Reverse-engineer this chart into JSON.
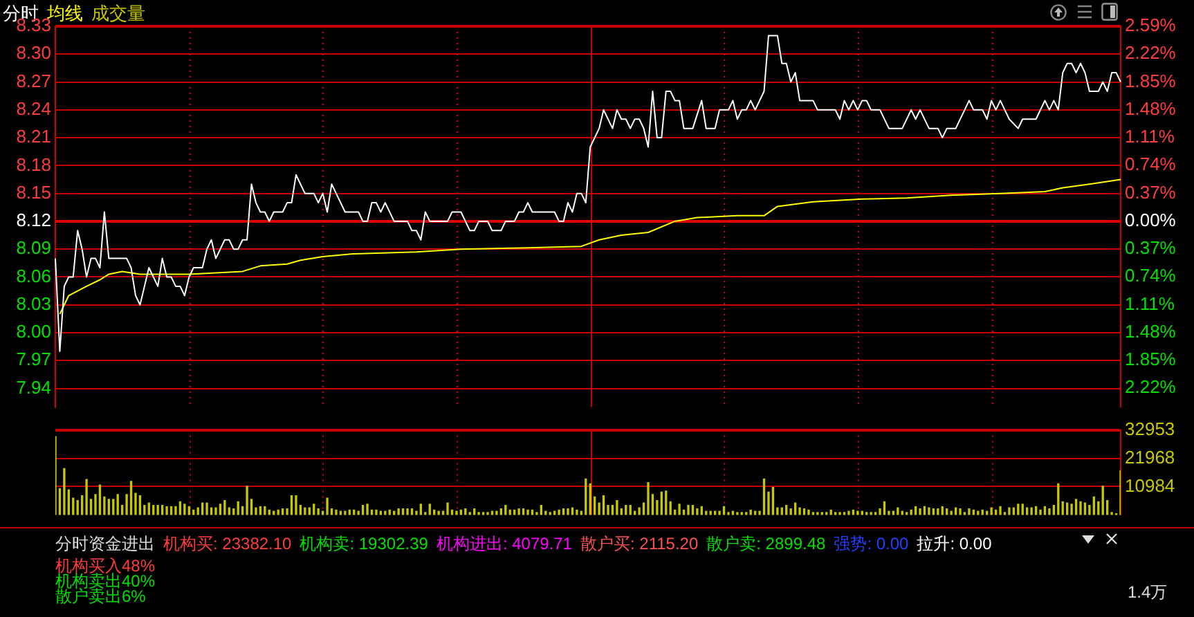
{
  "chart_data": [
    {
      "type": "line",
      "grid": true,
      "tick_labels": "y",
      "categories": [
        null,
        null,
        null,
        null,
        null,
        null,
        null,
        null,
        null,
        null,
        null,
        null,
        null,
        null,
        null,
        null,
        null,
        null,
        null,
        null,
        null,
        null,
        null,
        null,
        null,
        null,
        null,
        null,
        null,
        null,
        null,
        null,
        null,
        null,
        null,
        null,
        null,
        null,
        null,
        null,
        null,
        null,
        null,
        null,
        null,
        null,
        null,
        null,
        null,
        null,
        null,
        null,
        null,
        null,
        null,
        null,
        null,
        null,
        null,
        null,
        null,
        null,
        null,
        null,
        null,
        null,
        null,
        null,
        null,
        null,
        null,
        null,
        null,
        null,
        null,
        null,
        null,
        null,
        null,
        null,
        null,
        null,
        null,
        null,
        null,
        null,
        null,
        null,
        null,
        null,
        null,
        null,
        null,
        null,
        null,
        null,
        null,
        null,
        null,
        null,
        null,
        null,
        null,
        null,
        null,
        null,
        null,
        null,
        null,
        null,
        null,
        null,
        null,
        null,
        null,
        null,
        null,
        null,
        null,
        null,
        null,
        null,
        null,
        null,
        null,
        null,
        null,
        null,
        null,
        null,
        null,
        null,
        null,
        null,
        null,
        null,
        null,
        null,
        null,
        null,
        null,
        null,
        null,
        null,
        null,
        null,
        null,
        null,
        null,
        null,
        null,
        null,
        null,
        null,
        null,
        null,
        null,
        null,
        null,
        null,
        null,
        null,
        null,
        null,
        null,
        null,
        null,
        null,
        null,
        null,
        null,
        null,
        null,
        null,
        null,
        null,
        null,
        null,
        null,
        null,
        null,
        null,
        null,
        null,
        null,
        null,
        null,
        null,
        null,
        null,
        null,
        null,
        null,
        null,
        null,
        null,
        null,
        null,
        null,
        null,
        null,
        null,
        null,
        null,
        null,
        null,
        null,
        null,
        null,
        null,
        null,
        null,
        null,
        null,
        null,
        null,
        null,
        null,
        null,
        null,
        null,
        null,
        null,
        null,
        null,
        null,
        null,
        null,
        null,
        null,
        null,
        null,
        null,
        null,
        null,
        null,
        null,
        null,
        null,
        null
      ],
      "series": [
        {
          "name": "分时",
          "color": "#ffffff",
          "values": [
            8.08,
            7.98,
            8.05,
            8.06,
            8.06,
            8.11,
            8.09,
            8.06,
            8.08,
            8.08,
            8.07,
            8.13,
            8.08,
            8.08,
            8.08,
            8.08,
            8.08,
            8.07,
            8.04,
            8.03,
            8.05,
            8.07,
            8.06,
            8.05,
            8.08,
            8.06,
            8.06,
            8.05,
            8.05,
            8.04,
            8.06,
            8.07,
            8.07,
            8.07,
            8.09,
            8.1,
            8.08,
            null,
            8.1,
            8.1,
            8.09,
            8.09,
            8.1,
            8.1,
            8.16,
            8.14,
            8.13,
            8.13,
            8.12,
            8.13,
            8.13,
            8.13,
            8.14,
            8.14,
            8.17,
            8.16,
            8.15,
            8.15,
            8.15,
            8.14,
            8.15,
            8.13,
            8.16,
            8.15,
            null,
            8.13,
            8.13,
            8.13,
            8.13,
            8.12,
            8.12,
            8.14,
            8.14,
            8.13,
            8.14,
            null,
            8.12,
            8.12,
            8.12,
            8.12,
            8.11,
            8.11,
            8.1,
            8.13,
            8.12,
            8.12,
            8.12,
            8.12,
            8.12,
            8.13,
            8.13,
            8.13,
            null,
            8.11,
            8.11,
            8.12,
            8.12,
            8.12,
            8.11,
            8.11,
            8.11,
            8.12,
            8.12,
            8.12,
            8.13,
            8.13,
            8.14,
            8.13,
            8.13,
            8.13,
            8.13,
            8.13,
            8.13,
            8.12,
            8.12,
            8.14,
            8.13,
            8.15,
            8.15,
            8.14,
            8.2,
            8.21,
            8.22,
            8.24,
            null,
            8.22,
            8.24,
            8.23,
            8.23,
            8.22,
            8.23,
            8.23,
            8.22,
            8.2,
            8.26,
            8.21,
            8.21,
            8.26,
            8.26,
            8.25,
            8.25,
            8.22,
            8.22,
            8.22,
            null,
            8.25,
            8.22,
            8.22,
            8.22,
            8.24,
            8.24,
            8.24,
            8.25,
            8.23,
            8.24,
            8.24,
            8.25,
            8.24,
            null,
            8.26,
            8.32,
            8.32,
            8.32,
            8.29,
            8.29,
            8.27,
            8.28,
            8.25,
            8.25,
            8.25,
            8.25,
            8.24,
            8.24,
            8.24,
            8.24,
            8.24,
            8.23,
            8.25,
            8.24,
            8.25,
            8.24,
            8.25,
            8.25,
            8.24,
            8.24,
            8.24,
            null,
            8.22,
            8.22,
            8.22,
            8.22,
            null,
            8.24,
            8.23,
            8.24,
            null,
            8.22,
            8.22,
            8.22,
            8.21,
            8.22,
            8.22,
            8.22,
            null,
            8.24,
            8.25,
            8.24,
            8.24,
            8.24,
            8.23,
            8.25,
            8.24,
            8.25,
            8.24,
            8.23,
            null,
            8.22,
            8.23,
            8.23,
            8.23,
            8.23,
            null,
            8.25,
            8.24,
            8.25,
            8.24,
            8.28,
            8.29,
            8.29,
            8.28,
            8.29,
            8.28,
            8.26,
            8.26,
            8.26,
            8.27,
            8.26,
            8.28,
            8.28,
            8.27
          ]
        },
        {
          "name": "均线",
          "color": "#ffff00",
          "values": [
            null,
            8.02,
            8.03,
            8.04,
            null,
            8.045,
            null,
            8.05,
            null,
            null,
            8.057,
            null,
            8.063,
            null,
            null,
            8.066,
            null,
            null,
            null,
            8.063,
            null,
            null,
            null,
            null,
            null,
            null,
            null,
            null,
            null,
            null,
            8.063,
            null,
            null,
            null,
            null,
            null,
            null,
            null,
            null,
            null,
            null,
            null,
            8.066,
            null,
            null,
            null,
            8.072,
            null,
            null,
            null,
            null,
            null,
            8.074,
            null,
            null,
            8.078,
            null,
            null,
            null,
            null,
            8.082,
            null,
            null,
            null,
            null,
            null,
            null,
            8.085,
            null,
            null,
            null,
            null,
            null,
            null,
            null,
            null,
            null,
            null,
            null,
            null,
            null,
            8.087,
            null,
            null,
            null,
            null,
            null,
            null,
            null,
            null,
            null,
            8.09,
            null,
            null,
            null,
            null,
            null,
            null,
            null,
            null,
            null,
            null,
            8.091,
            null,
            null,
            null,
            null,
            null,
            null,
            null,
            null,
            null,
            null,
            null,
            null,
            null,
            null,
            null,
            8.093,
            null,
            null,
            null,
            8.1,
            null,
            null,
            null,
            null,
            8.105,
            null,
            null,
            null,
            null,
            null,
            8.108,
            null,
            null,
            null,
            null,
            null,
            8.12,
            null,
            null,
            null,
            null,
            8.124,
            null,
            null,
            null,
            null,
            null,
            null,
            null,
            null,
            8.126,
            null,
            null,
            null,
            null,
            null,
            8.126,
            null,
            null,
            8.136,
            null,
            null,
            null,
            null,
            null,
            null,
            null,
            8.141,
            null,
            null,
            null,
            null,
            null,
            null,
            null,
            null,
            null,
            null,
            8.144,
            null,
            null,
            null,
            null,
            null,
            null,
            null,
            null,
            null,
            8.145,
            null,
            null,
            null,
            null,
            null,
            null,
            null,
            null,
            null,
            8.148,
            null,
            null,
            null,
            null,
            null,
            null,
            null,
            null,
            null,
            null,
            8.15,
            null,
            null,
            null,
            null,
            null,
            null,
            null,
            null,
            null,
            8.152,
            null,
            null,
            null,
            8.156,
            null,
            null,
            null,
            null,
            null,
            8.16,
            null,
            null,
            null,
            null,
            null,
            null,
            8.165
          ]
        }
      ],
      "ylim": [
        7.92,
        8.33
      ],
      "yticks": [
        {
          "value": 8.33,
          "label": "8.33"
        },
        {
          "value": 8.3,
          "label": "8.30"
        },
        {
          "value": 8.27,
          "label": "8.27"
        },
        {
          "value": 8.24,
          "label": "8.24"
        },
        {
          "value": 8.21,
          "label": "8.21"
        },
        {
          "value": 8.18,
          "label": "8.18"
        },
        {
          "value": 8.15,
          "label": "8.15"
        },
        {
          "value": 8.12,
          "label": "8.12"
        },
        {
          "value": 8.09,
          "label": "8.09"
        },
        {
          "value": 8.06,
          "label": "8.06"
        },
        {
          "value": 8.03,
          "label": "8.03"
        },
        {
          "value": 8.0,
          "label": "8.00"
        },
        {
          "value": 7.97,
          "label": "7.97"
        },
        {
          "value": 7.94,
          "label": "7.94"
        }
      ],
      "y2lim": [
        -2.47,
        2.59
      ],
      "y2ticks": [
        {
          "value": 2.59,
          "label": "2.59%"
        },
        {
          "value": 2.22,
          "label": "2.22%"
        },
        {
          "value": 1.85,
          "label": "1.85%"
        },
        {
          "value": 1.48,
          "label": "1.48%"
        },
        {
          "value": 1.11,
          "label": "1.11%"
        },
        {
          "value": 0.74,
          "label": "0.74%"
        },
        {
          "value": 0.37,
          "label": "0.37%"
        },
        {
          "value": 0,
          "label": "0.00%"
        },
        {
          "value": -0.37,
          "label": "0.37%"
        },
        {
          "value": -0.74,
          "label": "0.74%"
        },
        {
          "value": -1.11,
          "label": "1.11%"
        },
        {
          "value": -1.48,
          "label": "1.48%"
        },
        {
          "value": -1.85,
          "label": "1.85%"
        },
        {
          "value": -2.22,
          "label": "2.22%"
        }
      ],
      "ref_lines": [
        {
          "axis": "y",
          "value": 8.12
        }
      ]
    },
    {
      "type": "bar",
      "grid": true,
      "tick_labels": "y",
      "categories": [
        null,
        null,
        null,
        null,
        null,
        null,
        null,
        null,
        null,
        null,
        null,
        null,
        null,
        null,
        null,
        null,
        null,
        null,
        null,
        null,
        null,
        null,
        null,
        null,
        null,
        null,
        null,
        null,
        null,
        null,
        null,
        null,
        null,
        null,
        null,
        null,
        null,
        null,
        null,
        null,
        null,
        null,
        null,
        null,
        null,
        null,
        null,
        null,
        null,
        null,
        null,
        null,
        null,
        null,
        null,
        null,
        null,
        null,
        null,
        null,
        null,
        null,
        null,
        null,
        null,
        null,
        null,
        null,
        null,
        null,
        null,
        null,
        null,
        null,
        null,
        null,
        null,
        null,
        null,
        null,
        null,
        null,
        null,
        null,
        null,
        null,
        null,
        null,
        null,
        null,
        null,
        null,
        null,
        null,
        null,
        null,
        null,
        null,
        null,
        null,
        null,
        null,
        null,
        null,
        null,
        null,
        null,
        null,
        null,
        null,
        null,
        null,
        null,
        null,
        null,
        null,
        null,
        null,
        null,
        null,
        null,
        null,
        null,
        null,
        null,
        null,
        null,
        null,
        null,
        null,
        null,
        null,
        null,
        null,
        null,
        null,
        null,
        null,
        null,
        null,
        null,
        null,
        null,
        null,
        null,
        null,
        null,
        null,
        null,
        null,
        null,
        null,
        null,
        null,
        null,
        null,
        null,
        null,
        null,
        null,
        null,
        null,
        null,
        null,
        null,
        null,
        null,
        null,
        null,
        null,
        null,
        null,
        null,
        null,
        null,
        null,
        null,
        null,
        null,
        null,
        null,
        null,
        null,
        null,
        null,
        null,
        null,
        null,
        null,
        null,
        null,
        null,
        null,
        null,
        null,
        null,
        null,
        null,
        null,
        null,
        null,
        null,
        null,
        null,
        null,
        null,
        null,
        null,
        null,
        null,
        null,
        null,
        null,
        null,
        null,
        null,
        null,
        null,
        null,
        null,
        null,
        null,
        null,
        null,
        null,
        null,
        null,
        null,
        null,
        null,
        null,
        null,
        null,
        null,
        null,
        null,
        null,
        null,
        null,
        null
      ],
      "series": [
        {
          "name": "成交量",
          "color": "#c8c800",
          "values": [
            30400,
            10210,
            17950,
            9750,
            6500,
            5570,
            7430,
            13770,
            6030,
            7890,
            11600,
            6960,
            6030,
            6030,
            7890,
            3710,
            7890,
            13000,
            8350,
            7430,
            3710,
            4640,
            3710,
            3710,
            3710,
            3250,
            3250,
            3250,
            5110,
            4180,
            3250,
            1860,
            2780,
            4640,
            4640,
            2780,
            2780,
            4180,
            5570,
            2780,
            2320,
            5110,
            3250,
            11140,
            6030,
            2780,
            3250,
            3250,
            1860,
            1390,
            1860,
            2320,
            2320,
            7430,
            7430,
            3710,
            2780,
            2780,
            4180,
            2320,
            1390,
            6500,
            2320,
            1860,
            1390,
            1390,
            1860,
            1860,
            1390,
            3710,
            4180,
            1860,
            1860,
            1390,
            1390,
            1860,
            1390,
            2320,
            2320,
            2320,
            2320,
            1390,
            4180,
            930,
            4180,
            1860,
            1390,
            1390,
            4640,
            1860,
            1390,
            1860,
            2320,
            930,
            2320,
            930,
            930,
            930,
            1390,
            1390,
            2320,
            3710,
            1860,
            1860,
            2320,
            2320,
            1860,
            1860,
            930,
            3710,
            1390,
            930,
            1390,
            1860,
            2320,
            2320,
            2780,
            1860,
            1390,
            13920,
            12070,
            6960,
            4640,
            7430,
            3710,
            3710,
            5570,
            2320,
            3710,
            3710,
            1390,
            2780,
            4640,
            12530,
            7890,
            5570,
            8820,
            9280,
            5110,
            1860,
            4180,
            1860,
            3710,
            3710,
            2320,
            3250,
            1390,
            1390,
            1390,
            1390,
            3250,
            930,
            1390,
            930,
            930,
            930,
            1860,
            1390,
            1390,
            13920,
            8820,
            10670,
            2780,
            2780,
            3710,
            2320,
            4640,
            2780,
            2320,
            1860,
            930,
            930,
            930,
            930,
            1860,
            930,
            930,
            930,
            1390,
            1860,
            1390,
            1390,
            930,
            930,
            930,
            2320,
            5110,
            1390,
            1390,
            2780,
            1390,
            930,
            1860,
            3250,
            2320,
            3250,
            2780,
            2320,
            2320,
            3250,
            2320,
            1390,
            2780,
            2320,
            930,
            2320,
            1860,
            1390,
            1860,
            1390,
            2780,
            1860,
            3250,
            930,
            2780,
            2780,
            4180,
            4180,
            2780,
            2780,
            3250,
            1860,
            3250,
            2320,
            3710,
            12070,
            5110,
            4640,
            4180,
            6030,
            5110,
            4640,
            3710,
            6960,
            5110,
            11140,
            5570,
            930,
            460,
            17170
          ]
        }
      ],
      "ylim": [
        0,
        32953
      ],
      "yticks": [
        10984,
        21968,
        32953
      ]
    },
    {
      "type": "other",
      "title": "分时资金进出",
      "annotations": [
        "机构买: 23382.10",
        "机构卖: 19302.39",
        "机构进出: 4079.71",
        "散户买: 2115.20",
        "散户卖: 2899.48",
        "强势: 0.00",
        "拉升: 0.00",
        "机构买入48%",
        "机构卖出40%",
        "散户卖出6%",
        "1.4万"
      ]
    }
  ]
}
